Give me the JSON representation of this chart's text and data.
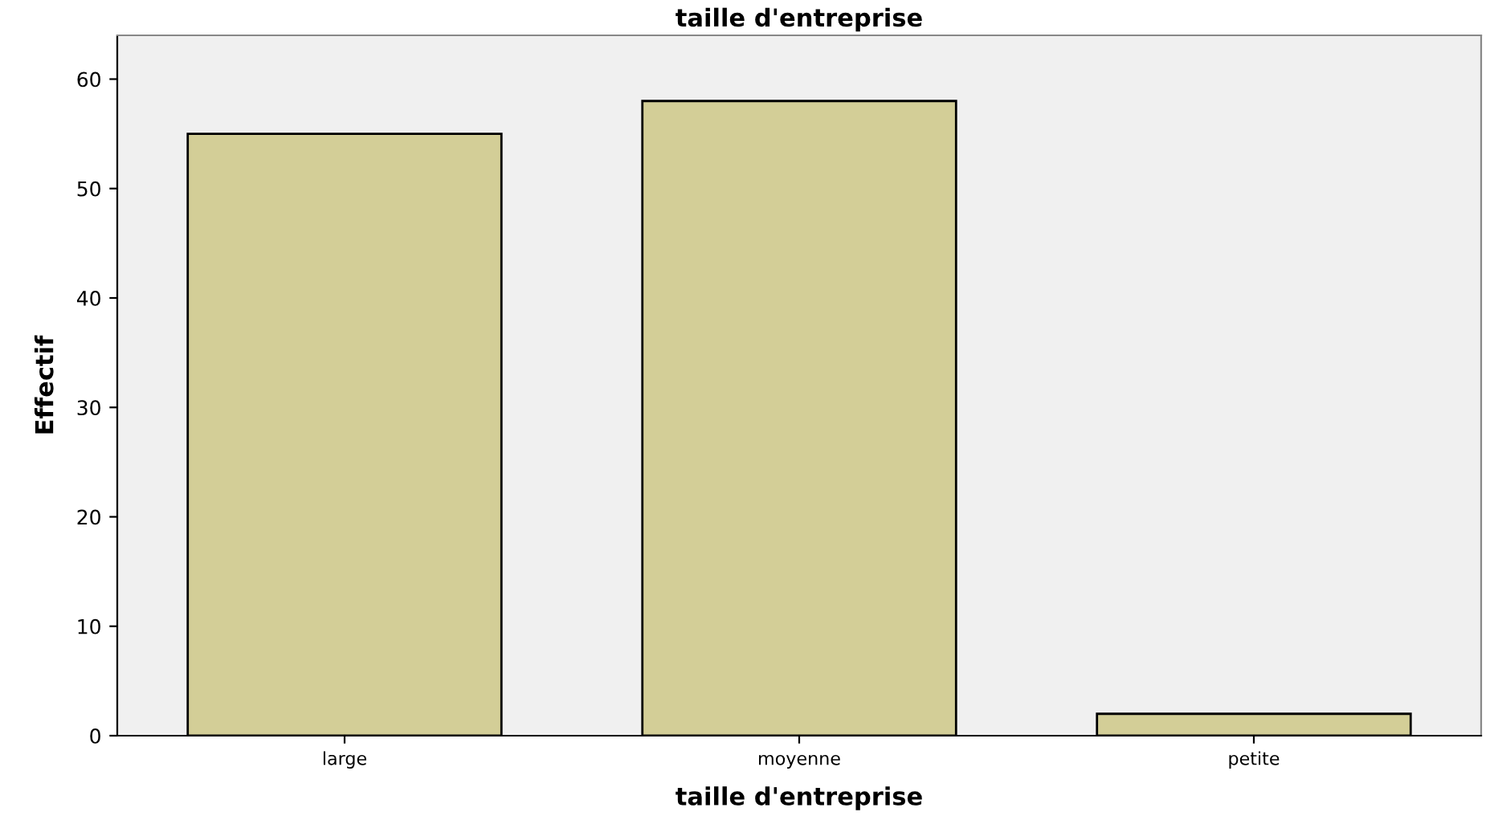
{
  "chart_data": {
    "type": "bar",
    "title": "taille d'entreprise",
    "xlabel": "taille d'entreprise",
    "ylabel": "Effectif",
    "categories": [
      "large",
      "moyenne",
      "petite"
    ],
    "values": [
      55,
      58,
      2
    ],
    "color": "#d3ce97",
    "ylim": [
      0,
      64
    ],
    "yticks": [
      0,
      10,
      20,
      30,
      40,
      50,
      60
    ],
    "grid": false
  }
}
